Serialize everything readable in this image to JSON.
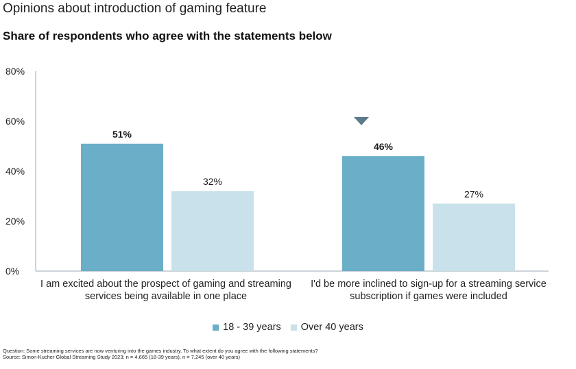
{
  "title": "Opinions about introduction of gaming feature",
  "subtitle": "Share of respondents who agree with the statements below",
  "colors": {
    "young": "#6aaec8",
    "old": "#c8e1ea",
    "axis": "#9aa7b0",
    "marker": "#5d7a8c"
  },
  "chart_data": {
    "type": "bar",
    "categories": [
      [
        "I am excited about the prospect of gaming and streaming",
        "services being available in one place"
      ],
      [
        "I'd be more inclined to sign-up for a streaming service",
        "subscription if games were included"
      ]
    ],
    "series": [
      {
        "name": "18 - 39 years",
        "values": [
          51,
          46
        ],
        "labels": [
          "51%",
          "46%"
        ],
        "bold_labels": true
      },
      {
        "name": "Over 40 years",
        "values": [
          32,
          27
        ],
        "labels": [
          "32%",
          "27%"
        ],
        "bold_labels": false
      }
    ],
    "ylim": [
      0,
      80
    ],
    "yticks": [
      0,
      20,
      40,
      60,
      80
    ],
    "ytick_labels": [
      "0%",
      "20%",
      "40%",
      "60%",
      "80%"
    ],
    "annotation": "down-triangle-marker above second category",
    "legend_position": "bottom-center",
    "grid": false
  },
  "footnotes": [
    "Question: Some streaming services are now venturing into the games industry. To what extent do you agree with the following statements?",
    "Source: Simon-Kucher Global Streaming Study 2023; n = 4,665 (18-39 years), n = 7,245 (over 40 years)"
  ]
}
